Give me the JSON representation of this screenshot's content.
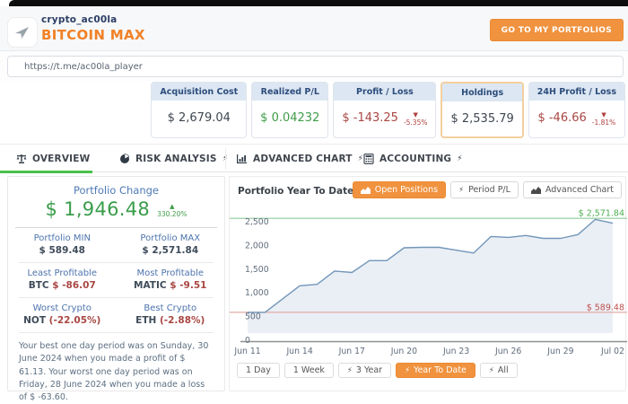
{
  "header": {
    "username": "crypto_ac00la",
    "portfolio_name": "BITCOIN MAX",
    "go_button": "GO TO MY PORTFOLIOS",
    "url": "https://t.me/ac00la_player"
  },
  "icons": {
    "bolt": "⚡",
    "up_triangle": "▲",
    "down_triangle": "▼"
  },
  "colors": {
    "accent_orange": "#F0923E",
    "brand_orange": "#F18127",
    "green": "#3A9D4A",
    "red": "#A94743",
    "label_blue": "#4D74AD",
    "card_header_blue": "#2D4D7C",
    "tab_active_green": "#4BC14B"
  },
  "stats": [
    {
      "label": "Acquisition Cost",
      "value": "$ 2,679.04",
      "tone": "dark"
    },
    {
      "label": "Realized P/L",
      "value": "$ 0.04232",
      "tone": "green"
    },
    {
      "label": "Profit / Loss",
      "value": "$ -143.25",
      "tone": "red",
      "delta": "-5.35%",
      "direction": "down"
    },
    {
      "label": "Holdings",
      "value": "$ 2,535.79",
      "tone": "dark",
      "highlighted": true
    },
    {
      "label": "24H Profit / Loss",
      "value": "$ -46.66",
      "tone": "red",
      "delta": "-1.81%",
      "direction": "down"
    }
  ],
  "tabs": [
    {
      "label": "OVERVIEW",
      "icon": "scale-icon",
      "active": true
    },
    {
      "label": "RISK ANALYSIS",
      "icon": "pie-chart-icon",
      "bolt": true
    },
    {
      "label": "ADVANCED CHART",
      "icon": "bar-chart-icon",
      "bolt": true
    },
    {
      "label": "ACCOUNTING",
      "icon": "calculator-icon",
      "bolt": true
    }
  ],
  "sidebar": {
    "change_label": "Portfolio Change",
    "change_value": "$ 1,946.48",
    "change_pct": "330.20%",
    "cells": [
      {
        "label": "Portfolio MIN",
        "value": "$ 589.48"
      },
      {
        "label": "Portfolio MAX",
        "value": "$ 2,571.84"
      },
      {
        "label": "Least Profitable",
        "symbol": "BTC",
        "value": "$ -86.07"
      },
      {
        "label": "Most Profitable",
        "symbol": "MATIC",
        "value": "$ -9.51"
      },
      {
        "label": "Worst Crypto",
        "symbol": "NOT",
        "value": "(-22.05%)"
      },
      {
        "label": "Best Crypto",
        "symbol": "ETH",
        "value": "(-2.88%)"
      }
    ],
    "summary": "Your best one day period was on Sunday, 30 June 2024 when you made a profit of $ 61.13. Your worst one day period was on Friday, 28 June 2024 when you made a loss of $ -63.60."
  },
  "chart_panel": {
    "title": "Portfolio Year To Date Chart",
    "buttons": [
      {
        "label": "Open Positions",
        "active": true
      },
      {
        "label": "Period P/L",
        "bolt": true
      },
      {
        "label": "Advanced Chart"
      }
    ],
    "period_buttons": [
      {
        "label": "1 Day"
      },
      {
        "label": "1 Week"
      },
      {
        "label": "3 Year",
        "bolt": true
      },
      {
        "label": "Year To Date",
        "bolt": true,
        "active": true
      },
      {
        "label": "All",
        "bolt": true
      }
    ]
  },
  "chart_data": {
    "type": "area",
    "title": "Portfolio Year To Date Chart",
    "x": [
      "Jun 11",
      "Jun 12",
      "Jun 13",
      "Jun 14",
      "Jun 15",
      "Jun 16",
      "Jun 17",
      "Jun 18",
      "Jun 19",
      "Jun 20",
      "Jun 21",
      "Jun 22",
      "Jun 23",
      "Jun 24",
      "Jun 25",
      "Jun 26",
      "Jun 27",
      "Jun 28",
      "Jun 29",
      "Jun 30",
      "Jul 01",
      "Jul 02"
    ],
    "values": [
      589,
      589,
      870,
      1150,
      1180,
      1460,
      1430,
      1680,
      1680,
      1950,
      1960,
      1960,
      1900,
      1840,
      2190,
      2170,
      2210,
      2150,
      2150,
      2230,
      2550,
      2470
    ],
    "x_tick_indices": [
      0,
      3,
      6,
      9,
      12,
      15,
      18,
      21
    ],
    "y_ticks": [
      0,
      500,
      1000,
      1500,
      2000,
      2500
    ],
    "y_tick_labels": [
      "0",
      "500",
      "1,000",
      "1,500",
      "2,000",
      "2,500"
    ],
    "ylim": [
      0,
      2600
    ],
    "grid": false,
    "legend_position": "none",
    "max_line": {
      "value": 2571.84,
      "label": "$ 2,571.84",
      "color": "#8FCB9B",
      "label_color": "#4CAF50"
    },
    "min_line": {
      "value": 589.48,
      "label": "$ 589.48",
      "color": "#E2ACA7",
      "label_color": "#C0504D"
    },
    "line_color": "#7296BA",
    "fill_color": "#7B9CC0",
    "axis_color": "#8C9196",
    "tick_label_color": "#5F6C7B"
  }
}
